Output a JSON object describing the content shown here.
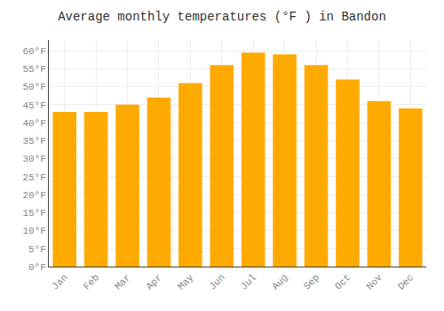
{
  "chart_data": {
    "type": "bar",
    "title": "Average monthly temperatures (°F ) in Bandon",
    "categories": [
      "Jan",
      "Feb",
      "Mar",
      "Apr",
      "May",
      "Jun",
      "Jul",
      "Aug",
      "Sep",
      "Oct",
      "Nov",
      "Dec"
    ],
    "values": [
      43,
      43,
      45,
      47,
      51,
      56,
      59.5,
      59,
      56,
      52,
      46,
      44
    ],
    "color": "#FFAA00",
    "ylim": [
      0,
      63
    ],
    "yticks": [
      {
        "value": 0,
        "label": "0°F"
      },
      {
        "value": 5,
        "label": "5°F"
      },
      {
        "value": 10,
        "label": "10°F"
      },
      {
        "value": 15,
        "label": "15°F"
      },
      {
        "value": 20,
        "label": "20°F"
      },
      {
        "value": 25,
        "label": "25°F"
      },
      {
        "value": 30,
        "label": "30°F"
      },
      {
        "value": 35,
        "label": "35°F"
      },
      {
        "value": 40,
        "label": "40°F"
      },
      {
        "value": 45,
        "label": "45°F"
      },
      {
        "value": 50,
        "label": "50°F"
      },
      {
        "value": 55,
        "label": "55°F"
      },
      {
        "value": 60,
        "label": "60°F"
      }
    ],
    "grid": true
  }
}
